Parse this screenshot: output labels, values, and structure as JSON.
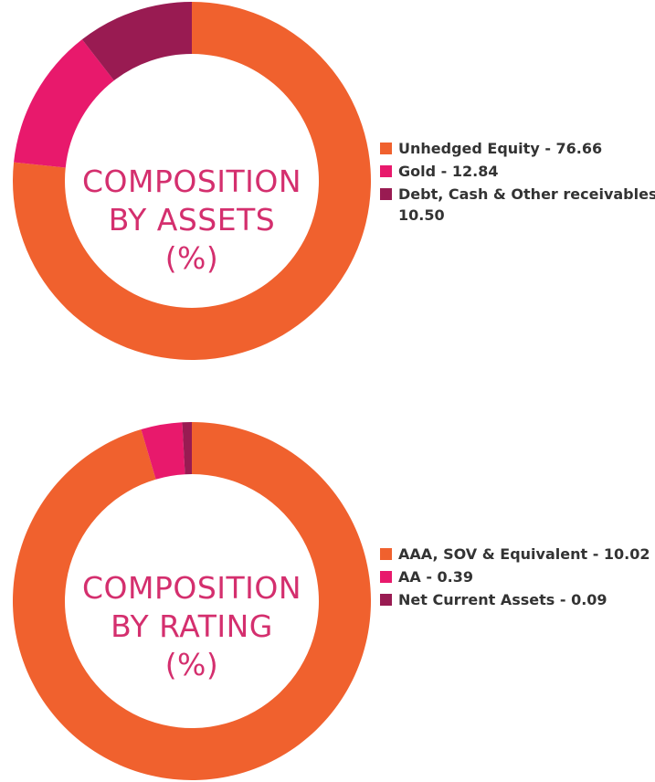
{
  "colors": {
    "orange": "#f0612e",
    "pink": "#e8196c",
    "maroon": "#991b52",
    "label": "#d42f6e"
  },
  "chart_data": [
    {
      "type": "pie",
      "style": "donut",
      "center_label": [
        "COMPOSITION",
        "BY ASSETS",
        "(%)"
      ],
      "legend_position": "right",
      "slices": [
        {
          "label": "Unhedged Equity - 76.66",
          "value": 76.66,
          "color": "#f0612e"
        },
        {
          "label": "Gold - 12.84",
          "value": 12.84,
          "color": "#e8196c"
        },
        {
          "label": "Debt, Cash & Other receivables - 10.50",
          "value": 10.5,
          "color": "#991b52"
        }
      ]
    },
    {
      "type": "pie",
      "style": "donut",
      "center_label": [
        "COMPOSITION",
        "BY RATING",
        "(%)"
      ],
      "legend_position": "right",
      "slices": [
        {
          "label": "AAA, SOV & Equivalent - 10.02",
          "value": 10.02,
          "color": "#f0612e"
        },
        {
          "label": "AA - 0.39",
          "value": 0.39,
          "color": "#e8196c"
        },
        {
          "label": "Net Current Assets - 0.09",
          "value": 0.09,
          "color": "#991b52"
        }
      ]
    }
  ]
}
